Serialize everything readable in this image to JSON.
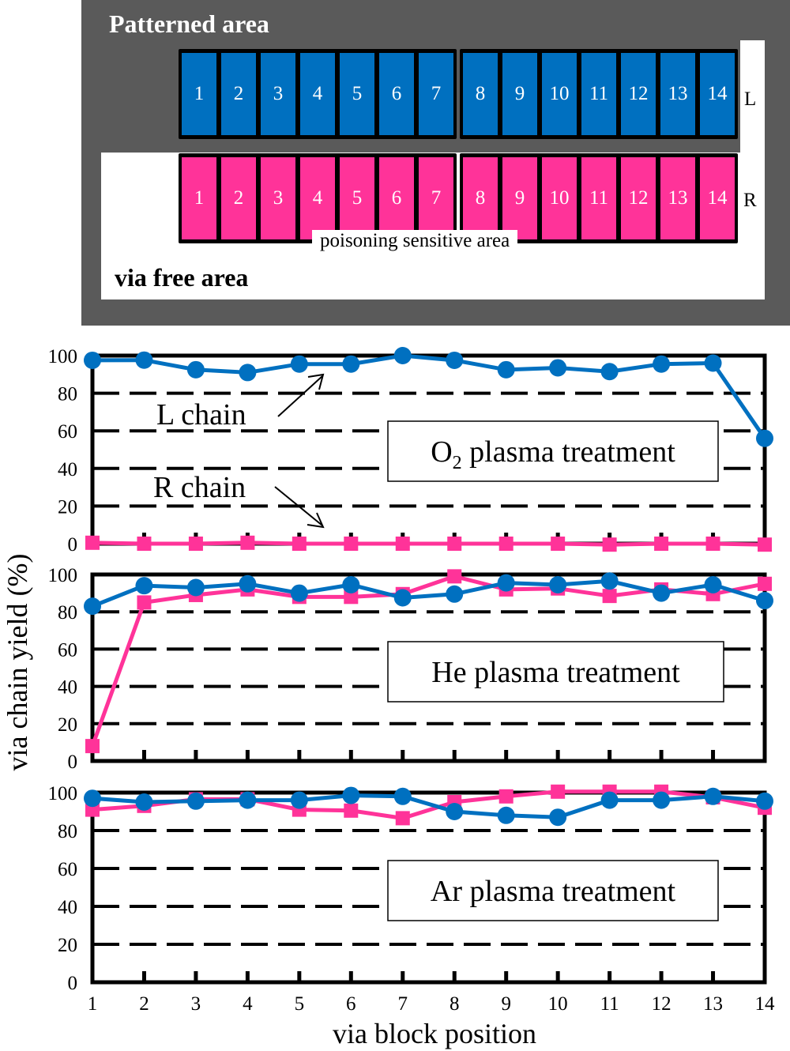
{
  "diagram": {
    "title": "Patterned area",
    "free_area_label": "via free area",
    "sensitive_area_label": "poisoning sensitive area",
    "row_L_label": "L",
    "row_R_label": "R",
    "blocks": [
      "1",
      "2",
      "3",
      "4",
      "5",
      "6",
      "7",
      "8",
      "9",
      "10",
      "11",
      "12",
      "13",
      "14"
    ],
    "colors": {
      "background": "#5a5a5a",
      "L": "#0070c0",
      "R": "#ff3399",
      "free": "#ffffff"
    }
  },
  "axes": {
    "ylabel": "via chain yield (%)",
    "xlabel": "via block position",
    "yticks": [
      "0",
      "20",
      "40",
      "60",
      "80",
      "100"
    ],
    "xticks": [
      "1",
      "2",
      "3",
      "4",
      "5",
      "6",
      "7",
      "8",
      "9",
      "10",
      "11",
      "12",
      "13",
      "14"
    ]
  },
  "annotations": {
    "l_chain": "L chain",
    "r_chain": "R chain"
  },
  "panels": [
    {
      "label_prefix": "O",
      "label_sub": "2",
      "label_suffix": " plasma treatment"
    },
    {
      "label_prefix": "He plasma treatment",
      "label_sub": "",
      "label_suffix": ""
    },
    {
      "label_prefix": "Ar plasma treatment",
      "label_sub": "",
      "label_suffix": ""
    }
  ],
  "chart_data": [
    {
      "type": "line",
      "title": "O2 plasma treatment",
      "xlabel": "via block position",
      "ylabel": "via chain yield (%)",
      "x": [
        1,
        2,
        3,
        4,
        5,
        6,
        7,
        8,
        9,
        10,
        11,
        12,
        13,
        14
      ],
      "ylim": [
        0,
        100
      ],
      "grid": "dashed horizontal at 20,40,60,80",
      "series": [
        {
          "name": "L chain",
          "color": "#0070c0",
          "marker": "circle",
          "values": [
            97.5,
            97.6,
            92.5,
            91,
            95.5,
            95.5,
            100,
            97.5,
            92.5,
            93.5,
            91.5,
            95.5,
            96,
            56
          ]
        },
        {
          "name": "R chain",
          "color": "#ff3399",
          "marker": "square",
          "values": [
            0.5,
            0,
            0,
            0.5,
            0,
            0,
            0,
            0,
            0,
            0,
            -0.5,
            0,
            0,
            -0.5
          ]
        }
      ]
    },
    {
      "type": "line",
      "title": "He plasma treatment",
      "xlabel": "via block position",
      "ylabel": "via chain yield (%)",
      "x": [
        1,
        2,
        3,
        4,
        5,
        6,
        7,
        8,
        9,
        10,
        11,
        12,
        13,
        14
      ],
      "ylim": [
        0,
        100
      ],
      "grid": "dashed horizontal at 20,40,60,80",
      "series": [
        {
          "name": "L chain",
          "color": "#0070c0",
          "marker": "circle",
          "values": [
            83,
            94,
            93,
            95,
            90,
            94.5,
            87.5,
            89.5,
            95.5,
            94.5,
            96.5,
            90,
            94.5,
            86
          ]
        },
        {
          "name": "R chain",
          "color": "#ff3399",
          "marker": "square",
          "values": [
            8,
            85,
            89,
            92,
            88,
            88,
            89.5,
            99,
            92,
            92.5,
            88.5,
            92,
            89.5,
            95
          ]
        }
      ]
    },
    {
      "type": "line",
      "title": "Ar plasma treatment",
      "xlabel": "via block position",
      "ylabel": "via chain yield (%)",
      "x": [
        1,
        2,
        3,
        4,
        5,
        6,
        7,
        8,
        9,
        10,
        11,
        12,
        13,
        14
      ],
      "ylim": [
        0,
        100
      ],
      "grid": "dashed horizontal at 20,40,60,80",
      "series": [
        {
          "name": "L chain",
          "color": "#0070c0",
          "marker": "circle",
          "values": [
            97,
            95,
            95.5,
            96,
            96,
            98.5,
            98,
            90,
            88,
            87,
            96,
            96,
            98,
            95.5
          ]
        },
        {
          "name": "R chain",
          "color": "#ff3399",
          "marker": "square",
          "values": [
            91,
            93,
            96.5,
            96.5,
            91,
            90.5,
            86.5,
            95,
            98,
            100.5,
            100.5,
            100.5,
            97.5,
            92
          ]
        }
      ]
    }
  ]
}
